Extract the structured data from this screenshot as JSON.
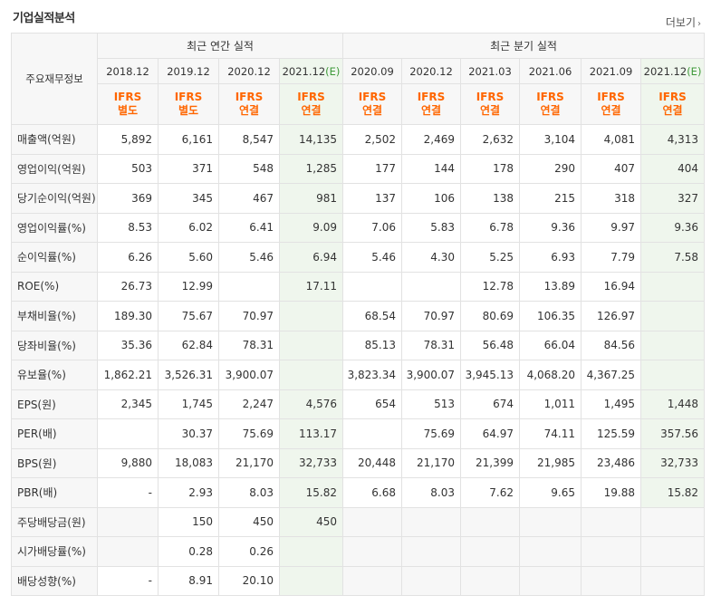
{
  "header": {
    "title": "기업실적분석",
    "more_label": "더보기"
  },
  "table": {
    "metric_header": "주요재무정보",
    "group_annual": "최근 연간 실적",
    "group_quarter": "최근 분기 실적",
    "periods": [
      "2018.12",
      "2019.12",
      "2020.12",
      "2021.12",
      "2020.09",
      "2020.12",
      "2021.03",
      "2021.06",
      "2021.09",
      "2021.12"
    ],
    "estimate_mark": "(E)",
    "standards": [
      [
        "IFRS",
        "별도"
      ],
      [
        "IFRS",
        "별도"
      ],
      [
        "IFRS",
        "연결"
      ],
      [
        "IFRS",
        "연결"
      ],
      [
        "IFRS",
        "연결"
      ],
      [
        "IFRS",
        "연결"
      ],
      [
        "IFRS",
        "연결"
      ],
      [
        "IFRS",
        "연결"
      ],
      [
        "IFRS",
        "연결"
      ],
      [
        "IFRS",
        "연결"
      ]
    ],
    "rows": [
      {
        "label": "매출액(억원)",
        "values": [
          "5,892",
          "6,161",
          "8,547",
          "14,135",
          "2,502",
          "2,469",
          "2,632",
          "3,104",
          "4,081",
          "4,313"
        ]
      },
      {
        "label": "영업이익(억원)",
        "values": [
          "503",
          "371",
          "548",
          "1,285",
          "177",
          "144",
          "178",
          "290",
          "407",
          "404"
        ]
      },
      {
        "label": "당기순이익(억원)",
        "values": [
          "369",
          "345",
          "467",
          "981",
          "137",
          "106",
          "138",
          "215",
          "318",
          "327"
        ]
      },
      {
        "label": "영업이익률(%)",
        "values": [
          "8.53",
          "6.02",
          "6.41",
          "9.09",
          "7.06",
          "5.83",
          "6.78",
          "9.36",
          "9.97",
          "9.36"
        ]
      },
      {
        "label": "순이익률(%)",
        "values": [
          "6.26",
          "5.60",
          "5.46",
          "6.94",
          "5.46",
          "4.30",
          "5.25",
          "6.93",
          "7.79",
          "7.58"
        ]
      },
      {
        "label": "ROE(%)",
        "values": [
          "26.73",
          "12.99",
          "",
          "17.11",
          "",
          "",
          "12.78",
          "13.89",
          "16.94",
          ""
        ]
      },
      {
        "label": "부채비율(%)",
        "values": [
          "189.30",
          "75.67",
          "70.97",
          "",
          "68.54",
          "70.97",
          "80.69",
          "106.35",
          "126.97",
          ""
        ]
      },
      {
        "label": "당좌비율(%)",
        "values": [
          "35.36",
          "62.84",
          "78.31",
          "",
          "85.13",
          "78.31",
          "56.48",
          "66.04",
          "84.56",
          ""
        ]
      },
      {
        "label": "유보율(%)",
        "values": [
          "1,862.21",
          "3,526.31",
          "3,900.07",
          "",
          "3,823.34",
          "3,900.07",
          "3,945.13",
          "4,068.20",
          "4,367.25",
          ""
        ]
      },
      {
        "label": "EPS(원)",
        "values": [
          "2,345",
          "1,745",
          "2,247",
          "4,576",
          "654",
          "513",
          "674",
          "1,011",
          "1,495",
          "1,448"
        ]
      },
      {
        "label": "PER(배)",
        "values": [
          "",
          "30.37",
          "75.69",
          "113.17",
          "",
          "75.69",
          "64.97",
          "74.11",
          "125.59",
          "357.56"
        ]
      },
      {
        "label": "BPS(원)",
        "values": [
          "9,880",
          "18,083",
          "21,170",
          "32,733",
          "20,448",
          "21,170",
          "21,399",
          "21,985",
          "23,486",
          "32,733"
        ]
      },
      {
        "label": "PBR(배)",
        "values": [
          "-",
          "2.93",
          "8.03",
          "15.82",
          "6.68",
          "8.03",
          "7.62",
          "9.65",
          "19.88",
          "15.82"
        ]
      },
      {
        "label": "주당배당금(원)",
        "values": [
          "",
          "150",
          "450",
          "450",
          "",
          "",
          "",
          "",
          "",
          ""
        ]
      },
      {
        "label": "시가배당률(%)",
        "values": [
          "",
          "0.28",
          "0.26",
          "",
          "",
          "",
          "",
          "",
          "",
          ""
        ]
      },
      {
        "label": "배당성향(%)",
        "values": [
          "-",
          "8.91",
          "20.10",
          "",
          "",
          "",
          "",
          "",
          "",
          ""
        ]
      }
    ]
  }
}
